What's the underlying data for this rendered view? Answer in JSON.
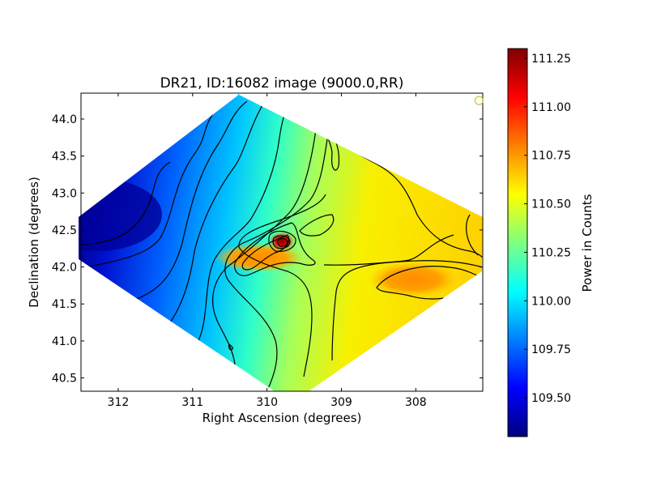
{
  "chart_data": {
    "type": "heatmap",
    "title": "DR21, ID:16082 image (9000.0,RR)",
    "xlabel": "Right Ascension (degrees)",
    "ylabel": "Declination (degrees)",
    "xlim": [
      312.5,
      307.1
    ],
    "ylim": [
      40.32,
      44.35
    ],
    "xticks": [
      312,
      311,
      310,
      309,
      308
    ],
    "xtick_labels": [
      "312",
      "311",
      "310",
      "309",
      "308"
    ],
    "yticks": [
      40.5,
      41.0,
      41.5,
      42.0,
      42.5,
      43.0,
      43.5,
      44.0
    ],
    "ytick_labels": [
      "40.5",
      "41.0",
      "41.5",
      "42.0",
      "42.5",
      "43.0",
      "43.5",
      "44.0"
    ],
    "colorbar": {
      "label": "Power in Counts",
      "min": 109.3,
      "max": 111.3,
      "ticks": [
        109.5,
        109.75,
        110.0,
        110.25,
        110.5,
        110.75,
        111.0,
        111.25
      ],
      "tick_labels": [
        "109.50",
        "109.75",
        "110.00",
        "110.25",
        "110.50",
        "110.75",
        "111.00",
        "111.25"
      ],
      "colormap": "jet"
    },
    "map_footprint_radec": [
      [
        309.95,
        44.35
      ],
      [
        307.1,
        42.6
      ],
      [
        309.35,
        40.32
      ],
      [
        312.5,
        42.0
      ]
    ],
    "peaks": [
      {
        "ra": 309.75,
        "dec": 42.33,
        "value": 111.3
      },
      {
        "ra": 310.2,
        "dec": 42.05,
        "value": 110.95
      },
      {
        "ra": 308.1,
        "dec": 41.8,
        "value": 110.75
      }
    ],
    "minimum": {
      "ra": 312.3,
      "dec": 42.6,
      "value": 109.3
    },
    "marker": {
      "shape": "open-circle",
      "ra": 307.15,
      "dec": 44.25,
      "color": "#c8c832"
    }
  }
}
